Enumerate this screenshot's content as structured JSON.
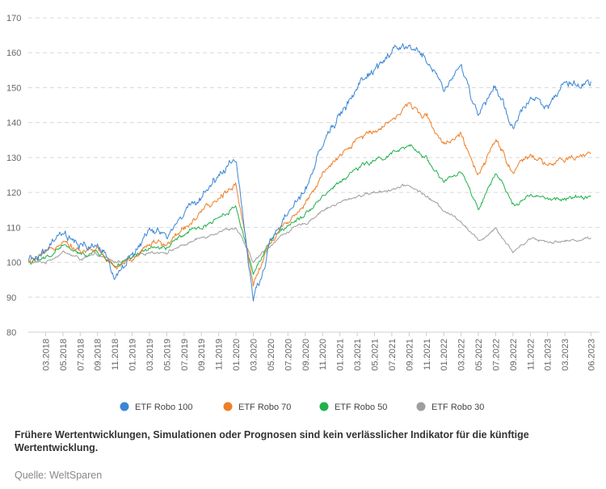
{
  "chart_data": {
    "type": "line",
    "ylim": [
      80,
      170
    ],
    "y_ticks": [
      80,
      90,
      100,
      110,
      120,
      130,
      140,
      150,
      160,
      170
    ],
    "x_tick_labels": [
      "03.2018",
      "05.2018",
      "07.2018",
      "09.2018",
      "11.2018",
      "01.2019",
      "03.2019",
      "05.2019",
      "07.2019",
      "09.2019",
      "11.2019",
      "01.2020",
      "03.2020",
      "05.2020",
      "07.2020",
      "09.2020",
      "11.2020",
      "01.2021",
      "03.2021",
      "05.2021",
      "07.2021",
      "09.2021",
      "11.2021",
      "01.2022",
      "03.2022",
      "05.2022",
      "07.2022",
      "09.2022",
      "11.2022",
      "01.2023",
      "03.2023",
      "06.2023"
    ],
    "x_months": [
      "2018-01",
      "2018-03",
      "2018-05",
      "2018-07",
      "2018-09",
      "2018-11",
      "2019-01",
      "2019-03",
      "2019-05",
      "2019-07",
      "2019-09",
      "2019-11",
      "2020-01",
      "2020-03",
      "2020-05",
      "2020-07",
      "2020-09",
      "2020-11",
      "2021-01",
      "2021-03",
      "2021-05",
      "2021-07",
      "2021-09",
      "2021-11",
      "2022-01",
      "2022-03",
      "2022-05",
      "2022-07",
      "2022-09",
      "2022-11",
      "2023-01",
      "2023-03",
      "2023-06"
    ],
    "grid": true,
    "legend_position": "bottom",
    "series": [
      {
        "name": "ETF Robo 100",
        "color": "#3a86d6",
        "values": [
          100,
          103,
          108,
          104,
          105,
          96,
          102,
          109,
          107,
          114,
          119,
          125,
          130,
          88,
          106,
          114,
          120,
          134,
          142,
          150,
          155,
          160,
          162,
          158,
          150,
          156,
          142,
          150,
          138,
          148,
          145,
          150,
          152
        ]
      },
      {
        "name": "ETF Robo 70",
        "color": "#f07e26",
        "values": [
          100,
          102,
          107,
          103,
          104,
          98,
          101,
          106,
          105,
          110,
          114,
          118,
          123,
          94,
          106,
          112,
          117,
          125,
          130,
          135,
          138,
          141,
          145,
          142,
          134,
          137,
          124,
          135,
          126,
          130,
          128,
          129,
          131
        ]
      },
      {
        "name": "ETF Robo 50",
        "color": "#1fb24a",
        "values": [
          100,
          101,
          105,
          102,
          103,
          99,
          101,
          104,
          104,
          108,
          110,
          113,
          116,
          97,
          106,
          111,
          114,
          119,
          123,
          127,
          129,
          131,
          133,
          130,
          123,
          126,
          115,
          125,
          117,
          119,
          118,
          118,
          119
        ]
      },
      {
        "name": "ETF Robo 30",
        "color": "#9e9e9e",
        "values": [
          100,
          100,
          103,
          101,
          102,
          100,
          101,
          103,
          103,
          105,
          107,
          109,
          110,
          100,
          105,
          109,
          111,
          115,
          117,
          119,
          120,
          121,
          122,
          119,
          115,
          112,
          106,
          110,
          103,
          107,
          106,
          106,
          107
        ]
      }
    ]
  },
  "footer": {
    "disclaimer": "Frühere Wertentwicklungen, Simulationen oder Prognosen sind kein verlässlicher Indikator für die künftige Wertentwicklung.",
    "source": "Quelle: WeltSparen"
  }
}
